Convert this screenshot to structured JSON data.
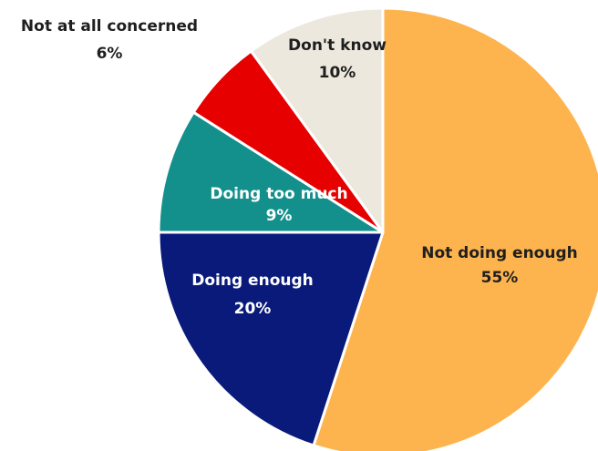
{
  "chart_data": {
    "type": "pie",
    "title": "",
    "slices": [
      {
        "name": "Not doing enough",
        "value": 55,
        "value_label": "55%",
        "color": "#FDB44E",
        "label_color": "#1F1F1F"
      },
      {
        "name": "Doing enough",
        "value": 20,
        "value_label": "20%",
        "color": "#0A1A7A",
        "label_color": "#FFFFFF"
      },
      {
        "name": "Doing too much",
        "value": 9,
        "value_label": "9%",
        "color": "#14908C",
        "label_color": "#FFFFFF"
      },
      {
        "name": "Not at all concerned",
        "value": 6,
        "value_label": "6%",
        "color": "#E60000",
        "label_color": "#1F1F1F"
      },
      {
        "name": "Don't know",
        "value": 10,
        "value_label": "10%",
        "color": "#ECE8DD",
        "label_color": "#1F1F1F"
      }
    ],
    "slice_border_color": "#FFFFFF",
    "start": "12 o'clock",
    "direction": "clockwise",
    "legend": "none"
  }
}
